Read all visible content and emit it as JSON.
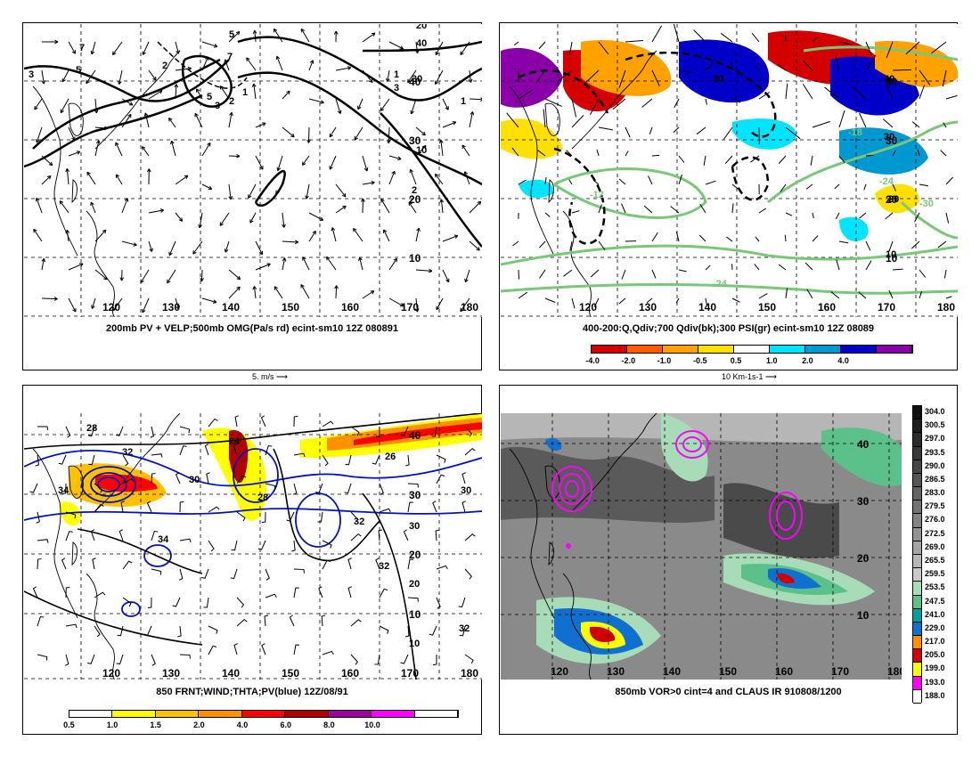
{
  "panels": {
    "p1": {
      "caption": "200mb PV + VELP;500mb OMG(Pa/s rd) ecint-sm10 12Z 080891",
      "scale": "5. m/s"
    },
    "p2": {
      "caption": "400-200:Q,Qdiv;700 Qdiv(bk);300 PSI(gr) ecint-sm10 12Z 08089",
      "scale": "10 Km-1s-1",
      "colorbar": [
        {
          "label": "-4.0",
          "color": "#d40000"
        },
        {
          "label": "-2.0",
          "color": "#ff5a00"
        },
        {
          "label": "-1.0",
          "color": "#ffa200"
        },
        {
          "label": "-0.5",
          "color": "#ffe000"
        },
        {
          "label": "0.5",
          "color": "#ffffff"
        },
        {
          "label": "1.0",
          "color": "#00e5ff"
        },
        {
          "label": "2.0",
          "color": "#0098d0"
        },
        {
          "label": "4.0",
          "color": "#0000c8"
        },
        {
          "label": "",
          "color": "#8a00a8"
        }
      ]
    },
    "p3": {
      "caption": "850 FRNT;WIND;THTA;PV(blue) 12Z/08/91",
      "colorbar": [
        {
          "label": "0.5",
          "color": "#ffffff"
        },
        {
          "label": "1.0",
          "color": "#ffff00"
        },
        {
          "label": "1.5",
          "color": "#ffc000"
        },
        {
          "label": "2.0",
          "color": "#ff9000"
        },
        {
          "label": "4.0",
          "color": "#ff0000"
        },
        {
          "label": "6.0",
          "color": "#b00000"
        },
        {
          "label": "8.0",
          "color": "#a000a0"
        },
        {
          "label": "10.0",
          "color": "#ff00ff"
        },
        {
          "label": "",
          "color": "#ffffff"
        }
      ]
    },
    "p4": {
      "caption": "850mb VOR>0 cint=4 and CLAUS IR 910808/1200",
      "colorbar": [
        {
          "label": "304.0",
          "color": "#111111"
        },
        {
          "label": "300.5",
          "color": "#1e1e1e"
        },
        {
          "label": "297.0",
          "color": "#2b2b2b"
        },
        {
          "label": "293.5",
          "color": "#383838"
        },
        {
          "label": "290.0",
          "color": "#464646"
        },
        {
          "label": "286.5",
          "color": "#555555"
        },
        {
          "label": "283.0",
          "color": "#646464"
        },
        {
          "label": "279.5",
          "color": "#737373"
        },
        {
          "label": "276.0",
          "color": "#838383"
        },
        {
          "label": "272.5",
          "color": "#939393"
        },
        {
          "label": "269.0",
          "color": "#a4a4a4"
        },
        {
          "label": "265.5",
          "color": "#b6b6b6"
        },
        {
          "label": "259.5",
          "color": "#c9c9c9"
        },
        {
          "label": "253.5",
          "color": "#a8dcb8"
        },
        {
          "label": "247.5",
          "color": "#5cc08a"
        },
        {
          "label": "241.0",
          "color": "#00a0a0"
        },
        {
          "label": "229.0",
          "color": "#1070d0"
        },
        {
          "label": "217.0",
          "color": "#ff9000"
        },
        {
          "label": "205.0",
          "color": "#d00000"
        },
        {
          "label": "199.0",
          "color": "#ffff00"
        },
        {
          "label": "193.0",
          "color": "#ff00ff"
        },
        {
          "label": "188.0",
          "color": "#ffffff"
        }
      ]
    }
  },
  "lon_labels": [
    "120",
    "130",
    "140",
    "150",
    "160",
    "170",
    "180"
  ],
  "lat_labels": [
    "40",
    "30",
    "20",
    "10"
  ],
  "contour_labels": {
    "p1": [
      "7",
      "5",
      "3",
      "2",
      "1",
      "5",
      "7",
      "5",
      "3",
      "2",
      "1",
      "3",
      "40",
      "30",
      "20",
      "10",
      "2",
      "1"
    ],
    "p2": [
      "30",
      "40",
      "30",
      "-18",
      "-24",
      "-30",
      "-12",
      "-24",
      "20",
      "10",
      "30"
    ],
    "p3": [
      "24",
      "26",
      "28",
      "30",
      "32",
      "34",
      "30",
      "32",
      "20",
      "30",
      "34",
      "32",
      "28",
      "32",
      "30",
      "10"
    ],
    "p4": []
  },
  "colors": {
    "psi_green": "#78c878",
    "pv_blue": "#0010c8",
    "vor_magenta": "#ff00ff"
  }
}
